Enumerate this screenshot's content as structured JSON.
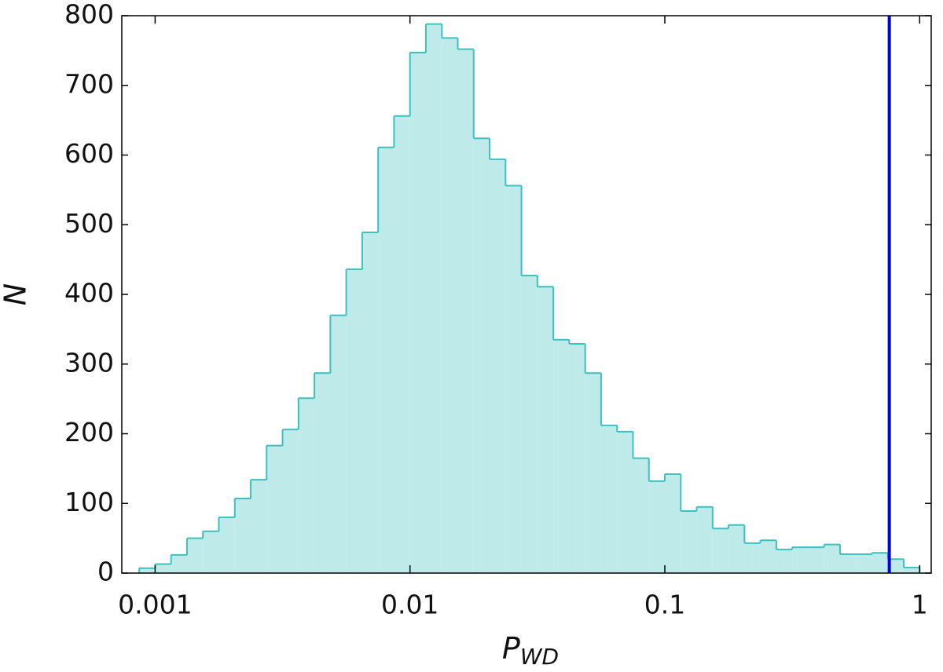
{
  "chart_data": {
    "type": "histogram",
    "xlabel": "P",
    "xlabel_subscript": "WD",
    "ylabel": "N",
    "xscale": "log",
    "xlim": [
      0.00074,
      1.11
    ],
    "ylim": [
      0,
      800
    ],
    "xticks": [
      0.001,
      0.01,
      0.1,
      1
    ],
    "yticks": [
      0,
      100,
      200,
      300,
      400,
      500,
      600,
      700,
      800
    ],
    "bins": [
      0.000866,
      0.001,
      0.001155,
      0.001334,
      0.00154,
      0.001778,
      0.002054,
      0.002371,
      0.002738,
      0.003162,
      0.003652,
      0.004217,
      0.00487,
      0.005623,
      0.006494,
      0.007499,
      0.00866,
      0.01,
      0.01155,
      0.01334,
      0.0154,
      0.01778,
      0.02054,
      0.02371,
      0.02738,
      0.03162,
      0.03652,
      0.04217,
      0.0487,
      0.05623,
      0.06494,
      0.07499,
      0.0866,
      0.1,
      0.1155,
      0.1334,
      0.154,
      0.1778,
      0.2054,
      0.2371,
      0.2738,
      0.3162,
      0.3652,
      0.4217,
      0.487,
      0.5623,
      0.6494,
      0.7499,
      0.866,
      1
    ],
    "values": [
      7,
      13,
      26,
      50,
      60,
      80,
      107,
      134,
      183,
      206,
      251,
      287,
      370,
      436,
      489,
      611,
      656,
      747,
      788,
      768,
      752,
      624,
      594,
      556,
      427,
      411,
      335,
      329,
      287,
      212,
      203,
      165,
      132,
      142,
      89,
      95,
      64,
      69,
      43,
      47,
      34,
      37,
      37,
      41,
      27,
      27,
      29,
      20,
      8
    ],
    "color": "#bfeaea",
    "edge_color": "#3cc0c0",
    "vline": 0.76,
    "vline_color": "#0000dd"
  }
}
